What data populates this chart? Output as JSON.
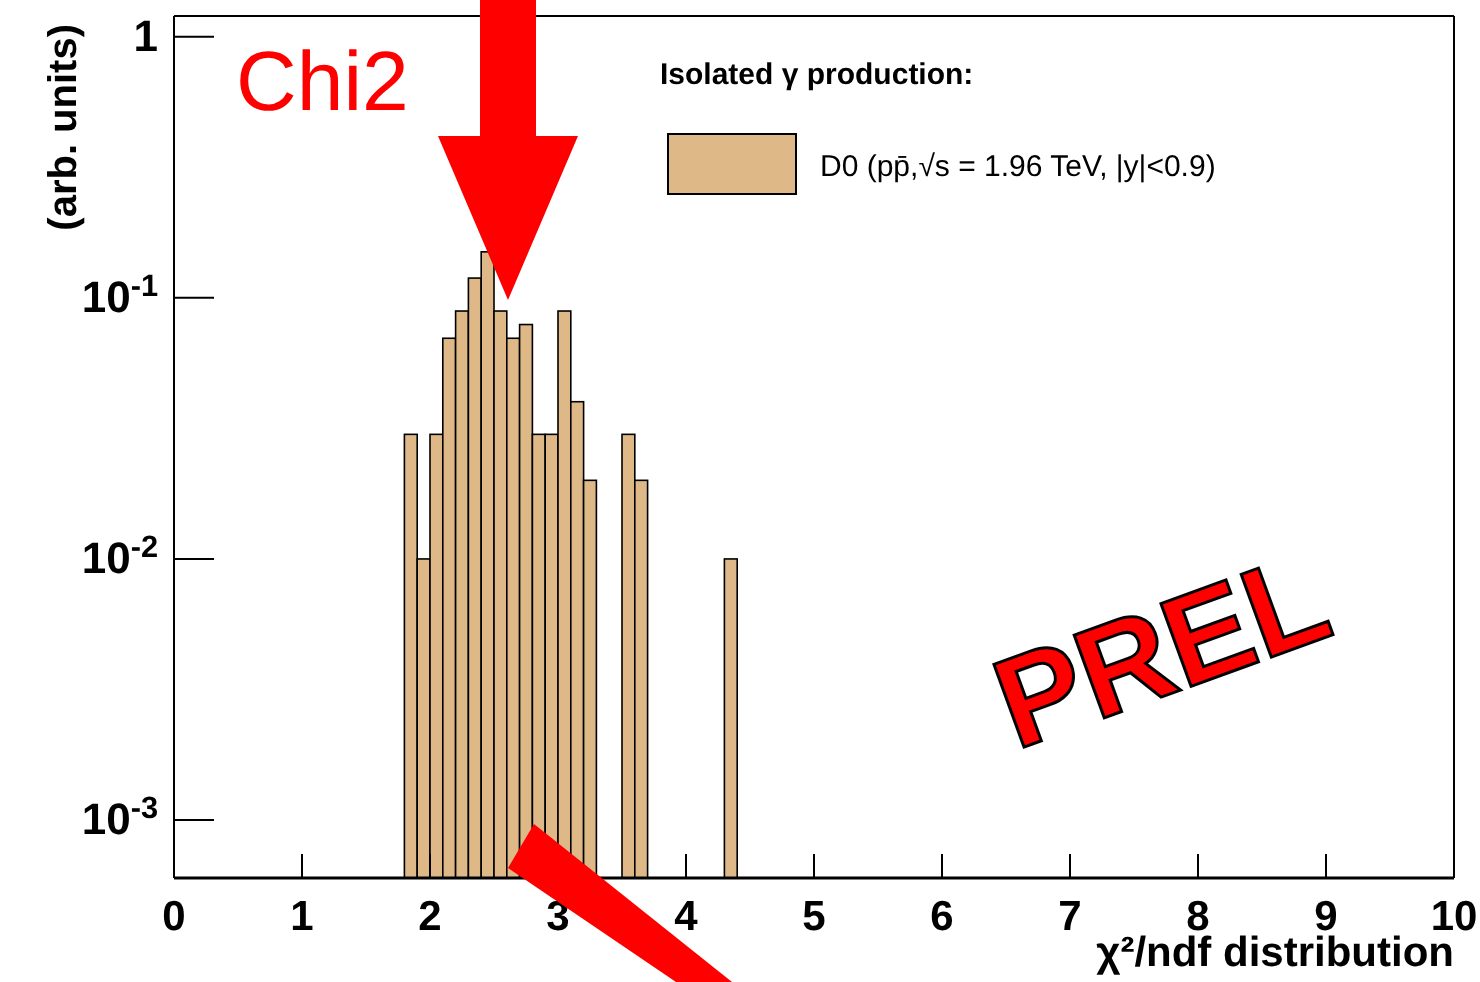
{
  "chart_data": {
    "type": "histogram",
    "xlabel": "χ²/ndf distribution",
    "ylabel": "(arb. units)",
    "legend_title": "Isolated γ production:",
    "bins": [
      1.8,
      1.9,
      2.0,
      2.1,
      2.2,
      2.3,
      2.4,
      2.5,
      2.6,
      2.7,
      2.8,
      2.9,
      3.0,
      3.1,
      3.2,
      3.3,
      3.4,
      3.5,
      3.6,
      3.7,
      3.8,
      3.9,
      4.0,
      4.1,
      4.2,
      4.3,
      4.4
    ],
    "series": [
      {
        "name": "D0 (pp̄,√s = 1.96 TeV, |y|<0.9)",
        "color": "#deb887",
        "values": [
          0.03,
          0.01,
          0.03,
          0.07,
          0.089,
          0.119,
          0.15,
          0.089,
          0.07,
          0.079,
          0.03,
          0.03,
          0.089,
          0.04,
          0.02,
          null,
          null,
          0.03,
          0.02,
          null,
          null,
          null,
          null,
          null,
          null,
          0.01
        ]
      }
    ],
    "xlim": [
      0,
      10
    ],
    "xticks": [
      0,
      1,
      2,
      3,
      4,
      5,
      6,
      7,
      8,
      9,
      10
    ],
    "ylim": [
      0.0006,
      1.2
    ],
    "log": "y",
    "yticks": [
      {
        "value": 0.001,
        "label": "10$^{-3}$"
      },
      {
        "value": 0.01,
        "label": "10$^{-2}$"
      },
      {
        "value": 0.1,
        "label": "10$^{-1}$"
      },
      1
    ],
    "legend": "top right",
    "grid": false,
    "annotations": [
      "Chi2",
      "PREL"
    ]
  }
}
